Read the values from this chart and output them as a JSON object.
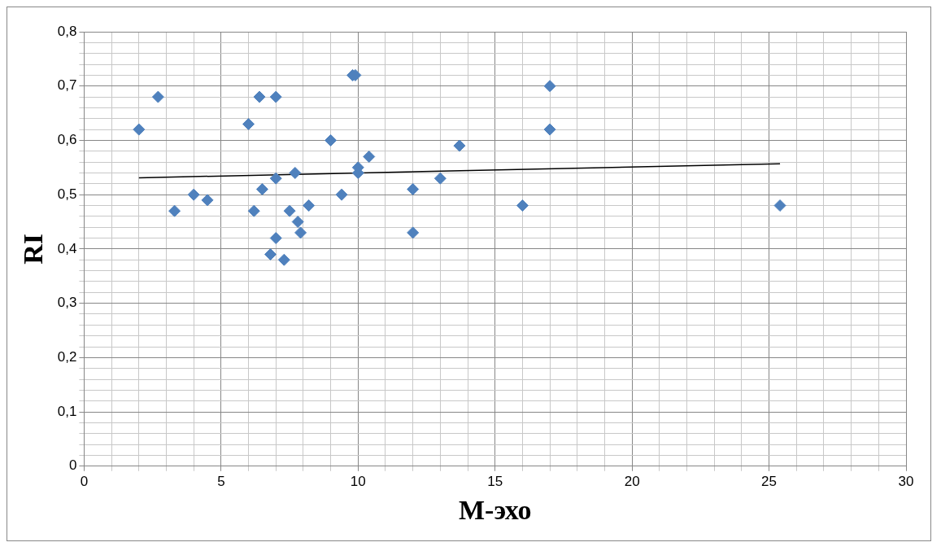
{
  "chart_data": {
    "type": "scatter",
    "xlabel": "М-эхо",
    "ylabel": "RI",
    "marker": "diamond",
    "grid": true,
    "legend": false,
    "xlim": [
      0,
      30
    ],
    "ylim": [
      0,
      0.8
    ],
    "xticks": [
      0,
      {
        "value": 1,
        "label": null
      },
      {
        "value": 2,
        "label": null
      },
      {
        "value": 3,
        "label": null
      },
      {
        "value": 4,
        "label": null
      },
      5,
      {
        "value": 6,
        "label": null
      },
      {
        "value": 7,
        "label": null
      },
      {
        "value": 8,
        "label": null
      },
      {
        "value": 9,
        "label": null
      },
      10,
      {
        "value": 11,
        "label": null
      },
      {
        "value": 12,
        "label": null
      },
      {
        "value": 13,
        "label": null
      },
      {
        "value": 14,
        "label": null
      },
      15,
      {
        "value": 16,
        "label": null
      },
      {
        "value": 17,
        "label": null
      },
      {
        "value": 18,
        "label": null
      },
      {
        "value": 19,
        "label": null
      },
      20,
      {
        "value": 21,
        "label": null
      },
      {
        "value": 22,
        "label": null
      },
      {
        "value": 23,
        "label": null
      },
      {
        "value": 24,
        "label": null
      },
      25,
      {
        "value": 26,
        "label": null
      },
      {
        "value": 27,
        "label": null
      },
      {
        "value": 28,
        "label": null
      },
      {
        "value": 29,
        "label": null
      },
      30
    ],
    "yticks": [
      {
        "value": 0,
        "label": "0"
      },
      {
        "value": 0.02,
        "label": null
      },
      {
        "value": 0.04,
        "label": null
      },
      {
        "value": 0.06,
        "label": null
      },
      {
        "value": 0.08,
        "label": null
      },
      {
        "value": 0.1,
        "label": "0,1"
      },
      {
        "value": 0.12,
        "label": null
      },
      {
        "value": 0.14,
        "label": null
      },
      {
        "value": 0.16,
        "label": null
      },
      {
        "value": 0.18,
        "label": null
      },
      {
        "value": 0.2,
        "label": "0,2"
      },
      {
        "value": 0.22,
        "label": null
      },
      {
        "value": 0.24,
        "label": null
      },
      {
        "value": 0.26,
        "label": null
      },
      {
        "value": 0.28,
        "label": null
      },
      {
        "value": 0.3,
        "label": "0,3"
      },
      {
        "value": 0.32,
        "label": null
      },
      {
        "value": 0.34,
        "label": null
      },
      {
        "value": 0.36,
        "label": null
      },
      {
        "value": 0.38,
        "label": null
      },
      {
        "value": 0.4,
        "label": "0,4"
      },
      {
        "value": 0.42,
        "label": null
      },
      {
        "value": 0.44,
        "label": null
      },
      {
        "value": 0.46,
        "label": null
      },
      {
        "value": 0.48,
        "label": null
      },
      {
        "value": 0.5,
        "label": "0,5"
      },
      {
        "value": 0.52,
        "label": null
      },
      {
        "value": 0.54,
        "label": null
      },
      {
        "value": 0.56,
        "label": null
      },
      {
        "value": 0.58,
        "label": null
      },
      {
        "value": 0.6,
        "label": "0,6"
      },
      {
        "value": 0.62,
        "label": null
      },
      {
        "value": 0.64,
        "label": null
      },
      {
        "value": 0.66,
        "label": null
      },
      {
        "value": 0.68,
        "label": null
      },
      {
        "value": 0.7,
        "label": "0,7"
      },
      {
        "value": 0.72,
        "label": null
      },
      {
        "value": 0.74,
        "label": null
      },
      {
        "value": 0.76,
        "label": null
      },
      {
        "value": 0.78,
        "label": null
      },
      {
        "value": 0.8,
        "label": "0,8"
      }
    ],
    "series": [
      {
        "type": "scatter",
        "color": "#4f81bd",
        "x": [
          2.0,
          2.7,
          3.3,
          4.0,
          4.5,
          6.0,
          6.4,
          7.0,
          6.2,
          6.5,
          7.0,
          6.8,
          7.0,
          7.3,
          7.5,
          7.7,
          7.8,
          7.9,
          8.2,
          9.0,
          9.4,
          9.8,
          9.9,
          10.0,
          10.0,
          10.4,
          12.0,
          12.0,
          13.0,
          13.7,
          16.0,
          17.0,
          17.0,
          25.4
        ],
        "values": [
          0.62,
          0.68,
          0.47,
          0.5,
          0.49,
          0.63,
          0.68,
          0.68,
          0.47,
          0.51,
          0.53,
          0.39,
          0.42,
          0.38,
          0.47,
          0.54,
          0.45,
          0.43,
          0.48,
          0.6,
          0.5,
          0.72,
          0.72,
          0.55,
          0.54,
          0.57,
          0.51,
          0.43,
          0.53,
          0.59,
          0.48,
          0.7,
          0.62,
          0.48
        ]
      },
      {
        "type": "line",
        "color": "#000000",
        "marker": "none",
        "x": [
          2.0,
          25.4
        ],
        "values": [
          0.531,
          0.557
        ]
      }
    ]
  }
}
